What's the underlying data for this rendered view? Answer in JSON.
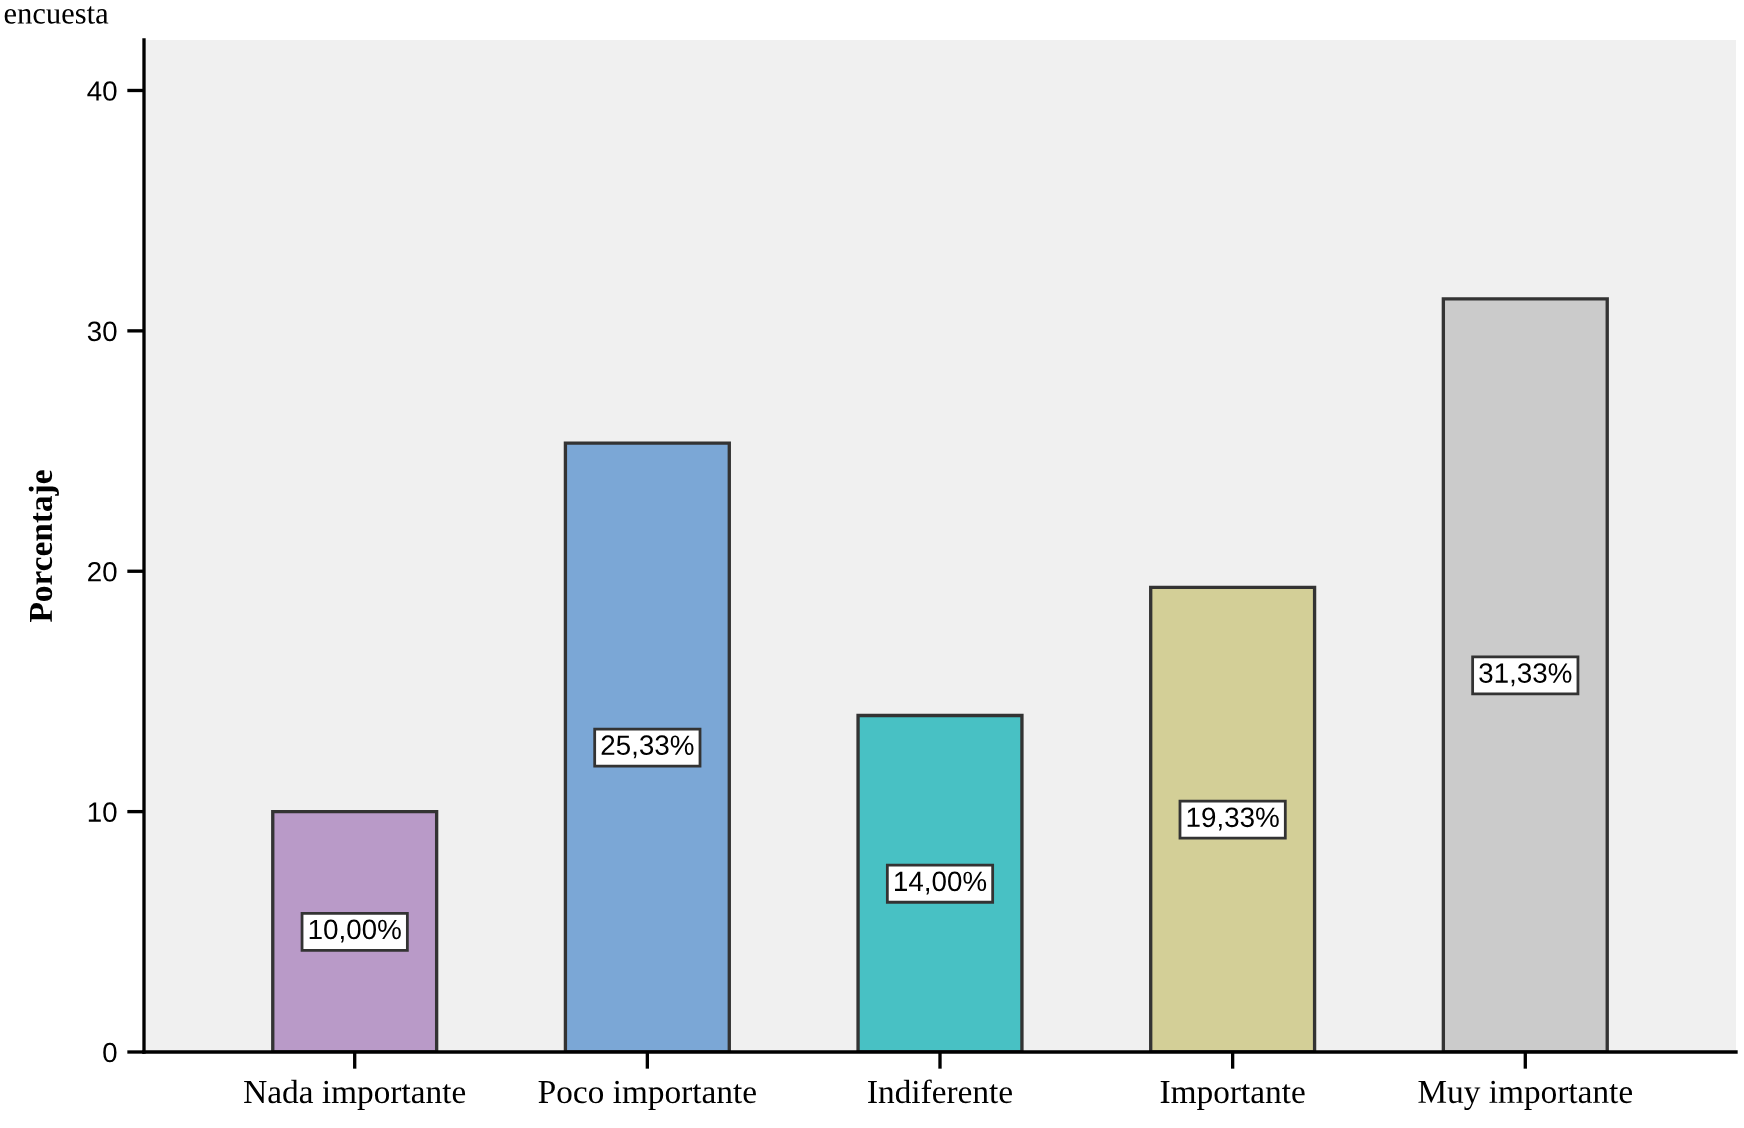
{
  "chart_data": {
    "type": "bar",
    "title": "encuesta",
    "ylabel": "Porcentaje",
    "categories": [
      "Nada importante",
      "Poco importante",
      "Indiferente",
      "Importante",
      "Muy importante"
    ],
    "values": [
      10.0,
      25.33,
      14.0,
      19.33,
      31.33
    ],
    "colors": [
      "#b99ac8",
      "#7ba7d6",
      "#48c1c4",
      "#d3cf97",
      "#cbcbcb"
    ],
    "value_labels": [
      "10,00%",
      "25,33%",
      "14,00%",
      "19,33%",
      "31,33%"
    ],
    "ylim": [
      0,
      42.1
    ],
    "yticks": [
      0,
      10,
      20,
      30,
      40
    ],
    "grid": false
  }
}
